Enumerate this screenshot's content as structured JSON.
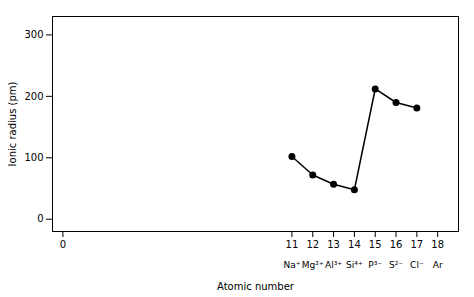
{
  "chart_data": {
    "type": "line",
    "x": [
      11,
      12,
      13,
      14,
      15,
      16,
      17
    ],
    "values": [
      102,
      72,
      57,
      48,
      212,
      190,
      181
    ],
    "xlabel": "Atomic number",
    "ylabel": "Ionic radius (pm)",
    "xlim": [
      -0.5,
      19
    ],
    "ylim": [
      -20,
      330
    ],
    "xticks": [
      0,
      11,
      12,
      13,
      14,
      15,
      16,
      17,
      18
    ],
    "yticks": [
      0,
      100,
      200,
      300
    ],
    "marker": "circle",
    "grid": false,
    "annotations": [
      {
        "x": 11,
        "text": "Na⁺"
      },
      {
        "x": 12,
        "text": "Mg²⁺"
      },
      {
        "x": 13,
        "text": "Al³⁺"
      },
      {
        "x": 14,
        "text": "Si⁴⁺"
      },
      {
        "x": 15,
        "text": "P³⁻"
      },
      {
        "x": 16,
        "text": "S²⁻"
      },
      {
        "x": 17,
        "text": "Cl⁻"
      },
      {
        "x": 18,
        "text": "Ar"
      }
    ]
  }
}
